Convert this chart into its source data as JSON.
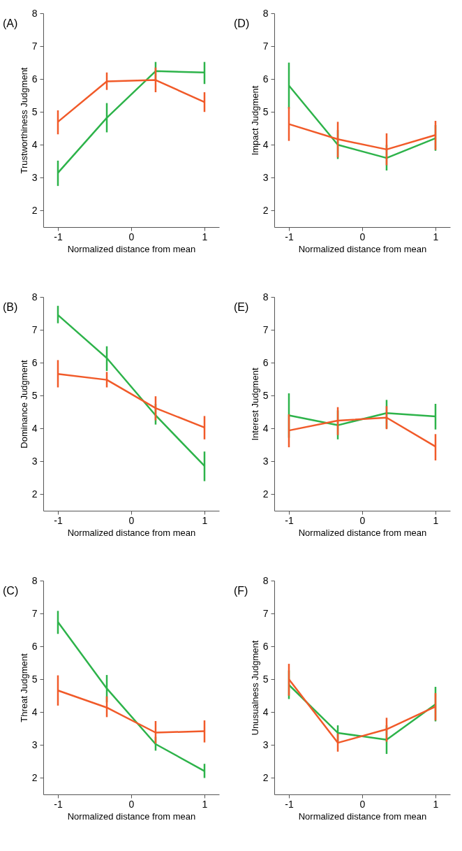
{
  "chart_data": [
    {
      "type": "line",
      "title": "(A)",
      "xlabel": "Normalized distance from mean",
      "ylabel": "Trustworthiness Judgment",
      "xlim": [
        -1.2,
        1.2
      ],
      "ylim": [
        1.5,
        8
      ],
      "xticks": [
        -1,
        0,
        1
      ],
      "yticks": [
        2,
        3,
        4,
        5,
        6,
        7,
        8
      ],
      "x": [
        -1,
        -0.333,
        0.333,
        1
      ],
      "series": [
        {
          "color": "#2db34a",
          "values": [
            3.15,
            4.82,
            6.24,
            6.2
          ],
          "errors": [
            [
              2.75,
              3.52
            ],
            [
              4.38,
              5.27
            ],
            [
              5.95,
              6.52
            ],
            [
              5.85,
              6.52
            ]
          ]
        },
        {
          "color": "#f15a29",
          "values": [
            4.7,
            5.93,
            5.97,
            5.3
          ],
          "errors": [
            [
              4.32,
              5.05
            ],
            [
              5.67,
              6.2
            ],
            [
              5.6,
              6.35
            ],
            [
              5.0,
              5.6
            ]
          ]
        }
      ]
    },
    {
      "type": "line",
      "title": "(D)",
      "xlabel": "Normalized distance from mean",
      "ylabel": "Impact Judgment",
      "xlim": [
        -1.2,
        1.2
      ],
      "ylim": [
        1.5,
        8
      ],
      "xticks": [
        -1,
        0,
        1
      ],
      "yticks": [
        2,
        3,
        4,
        5,
        6,
        7,
        8
      ],
      "x": [
        -1,
        -0.333,
        0.333,
        1
      ],
      "series": [
        {
          "color": "#2db34a",
          "values": [
            5.8,
            4.0,
            3.6,
            4.2
          ],
          "errors": [
            [
              5.1,
              6.5
            ],
            [
              3.57,
              4.45
            ],
            [
              3.22,
              4.0
            ],
            [
              3.82,
              4.6
            ]
          ]
        },
        {
          "color": "#f15a29",
          "values": [
            4.63,
            4.17,
            3.86,
            4.3
          ],
          "errors": [
            [
              4.12,
              5.15
            ],
            [
              3.62,
              4.7
            ],
            [
              3.38,
              4.35
            ],
            [
              3.85,
              4.73
            ]
          ]
        }
      ]
    },
    {
      "type": "line",
      "title": "(B)",
      "xlabel": "Normalized distance from mean",
      "ylabel": "Dominance Judgment",
      "xlim": [
        -1.2,
        1.2
      ],
      "ylim": [
        1.5,
        8
      ],
      "xticks": [
        -1,
        0,
        1
      ],
      "yticks": [
        2,
        3,
        4,
        5,
        6,
        7,
        8
      ],
      "x": [
        -1,
        -0.333,
        0.333,
        1
      ],
      "series": [
        {
          "color": "#2db34a",
          "values": [
            7.45,
            6.14,
            4.4,
            2.86
          ],
          "errors": [
            [
              7.2,
              7.73
            ],
            [
              5.75,
              6.5
            ],
            [
              4.12,
              4.75
            ],
            [
              2.4,
              3.3
            ]
          ]
        },
        {
          "color": "#f15a29",
          "values": [
            5.66,
            5.48,
            4.62,
            4.03
          ],
          "errors": [
            [
              5.25,
              6.08
            ],
            [
              5.25,
              5.72
            ],
            [
              4.25,
              4.98
            ],
            [
              3.67,
              4.38
            ]
          ]
        }
      ]
    },
    {
      "type": "line",
      "title": "(E)",
      "xlabel": "Normalized distance from mean",
      "ylabel": "Interest Judgment",
      "xlim": [
        -1.2,
        1.2
      ],
      "ylim": [
        1.5,
        8
      ],
      "xticks": [
        -1,
        0,
        1
      ],
      "yticks": [
        2,
        3,
        4,
        5,
        6,
        7,
        8
      ],
      "x": [
        -1,
        -0.333,
        0.333,
        1
      ],
      "series": [
        {
          "color": "#2db34a",
          "values": [
            4.4,
            4.1,
            4.47,
            4.37
          ],
          "errors": [
            [
              3.72,
              5.07
            ],
            [
              3.67,
              4.55
            ],
            [
              4.0,
              4.87
            ],
            [
              3.97,
              4.75
            ]
          ]
        },
        {
          "color": "#f15a29",
          "values": [
            3.94,
            4.24,
            4.33,
            3.45
          ],
          "errors": [
            [
              3.43,
              4.43
            ],
            [
              3.8,
              4.65
            ],
            [
              3.98,
              4.68
            ],
            [
              3.03,
              3.83
            ]
          ]
        }
      ]
    },
    {
      "type": "line",
      "title": "(C)",
      "xlabel": "Normalized distance from mean",
      "ylabel": "Threat Judgment",
      "xlim": [
        -1.2,
        1.2
      ],
      "ylim": [
        1.5,
        8
      ],
      "xticks": [
        -1,
        0,
        1
      ],
      "yticks": [
        2,
        3,
        4,
        5,
        6,
        7,
        8
      ],
      "x": [
        -1,
        -0.333,
        0.333,
        1
      ],
      "series": [
        {
          "color": "#2db34a",
          "values": [
            6.74,
            4.72,
            3.03,
            2.21
          ],
          "errors": [
            [
              6.38,
              7.08
            ],
            [
              4.3,
              5.13
            ],
            [
              2.83,
              3.25
            ],
            [
              2.0,
              2.43
            ]
          ]
        },
        {
          "color": "#f15a29",
          "values": [
            4.66,
            4.14,
            3.38,
            3.42
          ],
          "errors": [
            [
              4.2,
              5.12
            ],
            [
              3.85,
              4.48
            ],
            [
              3.05,
              3.73
            ],
            [
              3.08,
              3.75
            ]
          ]
        }
      ]
    },
    {
      "type": "line",
      "title": "(F)",
      "xlabel": "Normalized distance from mean",
      "ylabel": "Unusualness Judgment",
      "xlim": [
        -1.2,
        1.2
      ],
      "ylim": [
        1.5,
        8
      ],
      "xticks": [
        -1,
        0,
        1
      ],
      "yticks": [
        2,
        3,
        4,
        5,
        6,
        7,
        8
      ],
      "x": [
        -1,
        -0.333,
        0.333,
        1
      ],
      "series": [
        {
          "color": "#2db34a",
          "values": [
            4.83,
            3.37,
            3.16,
            4.24
          ],
          "errors": [
            [
              4.4,
              5.27
            ],
            [
              3.1,
              3.6
            ],
            [
              2.73,
              3.6
            ],
            [
              3.72,
              4.77
            ]
          ]
        },
        {
          "color": "#f15a29",
          "values": [
            5.0,
            3.07,
            3.48,
            4.17
          ],
          "errors": [
            [
              4.5,
              5.47
            ],
            [
              2.8,
              3.35
            ],
            [
              3.1,
              3.83
            ],
            [
              3.75,
              4.58
            ]
          ]
        }
      ]
    }
  ]
}
